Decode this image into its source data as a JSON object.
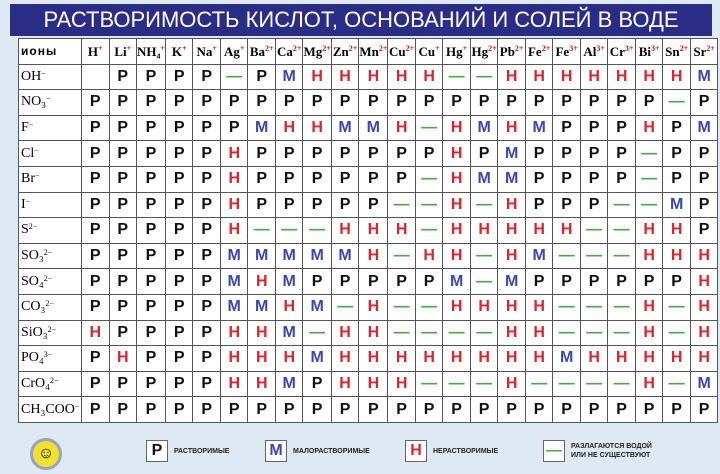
{
  "title": "РАСТВОРИМОСТЬ КИСЛОТ, ОСНОВАНИЙ И СОЛЕЙ В ВОДЕ",
  "corner_label": "ионы",
  "cations": [
    [
      "H",
      "+"
    ],
    [
      "Li",
      "+"
    ],
    [
      "NH₄",
      "+"
    ],
    [
      "K",
      "+"
    ],
    [
      "Na",
      "+"
    ],
    [
      "Ag",
      "+"
    ],
    [
      "Ba",
      "2+"
    ],
    [
      "Ca",
      "2+"
    ],
    [
      "Mg",
      "2+"
    ],
    [
      "Zn",
      "2+"
    ],
    [
      "Mn",
      "2+"
    ],
    [
      "Cu",
      "2+"
    ],
    [
      "Cu",
      "+"
    ],
    [
      "Hg",
      "+"
    ],
    [
      "Hg",
      "2+"
    ],
    [
      "Pb",
      "2+"
    ],
    [
      "Fe",
      "2+"
    ],
    [
      "Fe",
      "3+"
    ],
    [
      "Al",
      "3+"
    ],
    [
      "Cr",
      "3+"
    ],
    [
      "Bi",
      "3+"
    ],
    [
      "Sn",
      "2+"
    ],
    [
      "Sr",
      "2+"
    ]
  ],
  "rows": [
    {
      "anion": "OH",
      "charge": "−",
      "cells": [
        "",
        "Р",
        "Р",
        "Р",
        "Р",
        "—",
        "Р",
        "М",
        "Н",
        "Н",
        "Н",
        "Н",
        "Н",
        "—",
        "—",
        "Н",
        "Н",
        "Н",
        "Н",
        "Н",
        "Н",
        "Н",
        "М"
      ]
    },
    {
      "anion": "NO₃",
      "charge": "−",
      "cells": [
        "Р",
        "Р",
        "Р",
        "Р",
        "Р",
        "Р",
        "Р",
        "Р",
        "Р",
        "Р",
        "Р",
        "Р",
        "Р",
        "Р",
        "Р",
        "Р",
        "Р",
        "Р",
        "Р",
        "Р",
        "Р",
        "—",
        "Р"
      ]
    },
    {
      "anion": "F",
      "charge": "−",
      "cells": [
        "Р",
        "Р",
        "Р",
        "Р",
        "Р",
        "Р",
        "М",
        "Н",
        "Н",
        "М",
        "М",
        "Н",
        "—",
        "Н",
        "М",
        "Н",
        "М",
        "Р",
        "Р",
        "Р",
        "Н",
        "Р",
        "М"
      ]
    },
    {
      "anion": "Cl",
      "charge": "−",
      "cells": [
        "Р",
        "Р",
        "Р",
        "Р",
        "Р",
        "Н",
        "Р",
        "Р",
        "Р",
        "Р",
        "Р",
        "Р",
        "Р",
        "Н",
        "Р",
        "М",
        "Р",
        "Р",
        "Р",
        "Р",
        "—",
        "Р",
        "Р"
      ]
    },
    {
      "anion": "Br",
      "charge": "−",
      "cells": [
        "Р",
        "Р",
        "Р",
        "Р",
        "Р",
        "Н",
        "Р",
        "Р",
        "Р",
        "Р",
        "Р",
        "Р",
        "—",
        "Н",
        "М",
        "М",
        "Р",
        "Р",
        "Р",
        "Р",
        "—",
        "Р",
        "Р"
      ]
    },
    {
      "anion": "I",
      "charge": "−",
      "cells": [
        "Р",
        "Р",
        "Р",
        "Р",
        "Р",
        "Н",
        "Р",
        "Р",
        "Р",
        "Р",
        "Р",
        "—",
        "—",
        "Н",
        "—",
        "Н",
        "Р",
        "Р",
        "Р",
        "—",
        "—",
        "М",
        "Р"
      ]
    },
    {
      "anion": "S",
      "charge": "2−",
      "cells": [
        "Р",
        "Р",
        "Р",
        "Р",
        "Р",
        "Н",
        "—",
        "—",
        "—",
        "Н",
        "Н",
        "Н",
        "—",
        "Н",
        "Н",
        "Н",
        "Н",
        "Н",
        "—",
        "—",
        "Н",
        "Н",
        "Р"
      ]
    },
    {
      "anion": "SO₃",
      "charge": "2−",
      "cells": [
        "Р",
        "Р",
        "Р",
        "Р",
        "Р",
        "М",
        "М",
        "М",
        "М",
        "М",
        "Н",
        "—",
        "Н",
        "Н",
        "—",
        "Н",
        "М",
        "—",
        "—",
        "—",
        "Н",
        "Н",
        "Н"
      ]
    },
    {
      "anion": "SO₄",
      "charge": "2−",
      "cells": [
        "Р",
        "Р",
        "Р",
        "Р",
        "Р",
        "М",
        "Н",
        "М",
        "Р",
        "Р",
        "Р",
        "Р",
        "Р",
        "М",
        "—",
        "М",
        "Р",
        "Р",
        "Р",
        "Р",
        "Р",
        "Р",
        "Н"
      ]
    },
    {
      "anion": "CO₃",
      "charge": "2−",
      "cells": [
        "Р",
        "Р",
        "Р",
        "Р",
        "Р",
        "М",
        "М",
        "Н",
        "М",
        "—",
        "Н",
        "—",
        "—",
        "Н",
        "Н",
        "Н",
        "Н",
        "—",
        "—",
        "—",
        "Н",
        "—",
        "Н"
      ]
    },
    {
      "anion": "SiO₃",
      "charge": "2−",
      "cells": [
        "Н",
        "Р",
        "Р",
        "Р",
        "Р",
        "Н",
        "Н",
        "М",
        "—",
        "Н",
        "Н",
        "—",
        "—",
        "—",
        "—",
        "Н",
        "Н",
        "—",
        "—",
        "—",
        "Н",
        "—",
        "Н"
      ]
    },
    {
      "anion": "PO₄",
      "charge": "3−",
      "cells": [
        "Р",
        "Н",
        "Р",
        "Р",
        "Р",
        "Н",
        "Н",
        "Н",
        "М",
        "Н",
        "Н",
        "Н",
        "Н",
        "Н",
        "Н",
        "Н",
        "Н",
        "М",
        "Н",
        "Н",
        "Н",
        "Н",
        "Н"
      ]
    },
    {
      "anion": "CrO₄",
      "charge": "2−",
      "cells": [
        "Р",
        "Р",
        "Р",
        "Р",
        "Р",
        "Н",
        "Н",
        "М",
        "Р",
        "Н",
        "Н",
        "Н",
        "—",
        "—",
        "—",
        "Н",
        "—",
        "—",
        "—",
        "—",
        "Н",
        "—",
        "М"
      ]
    },
    {
      "anion": "CH₃COO",
      "charge": "−",
      "cells": [
        "Р",
        "Р",
        "Р",
        "Р",
        "Р",
        "Р",
        "Р",
        "Р",
        "Р",
        "Р",
        "Р",
        "Р",
        "Р",
        "Р",
        "Р",
        "Р",
        "Р",
        "Р",
        "Р",
        "Р",
        "Р",
        "Р",
        "Р"
      ]
    }
  ],
  "legend": [
    {
      "symbol": "Р",
      "text": "РАСТВОРИМЫЕ",
      "color": "#111111"
    },
    {
      "symbol": "М",
      "text": "МАЛОРАСТВОРИМЫЕ",
      "color": "#3848b0"
    },
    {
      "symbol": "Н",
      "text": "НЕРАСТВОРИМЫЕ",
      "color": "#d8262c"
    },
    {
      "symbol": "—",
      "text": "РАЗЛАГАЮТСЯ ВОДОЙ ИЛИ НЕ СУЩЕСТВУЮТ",
      "color": "#4aa84a"
    }
  ],
  "logo_icon": "smiley-gear-icon"
}
